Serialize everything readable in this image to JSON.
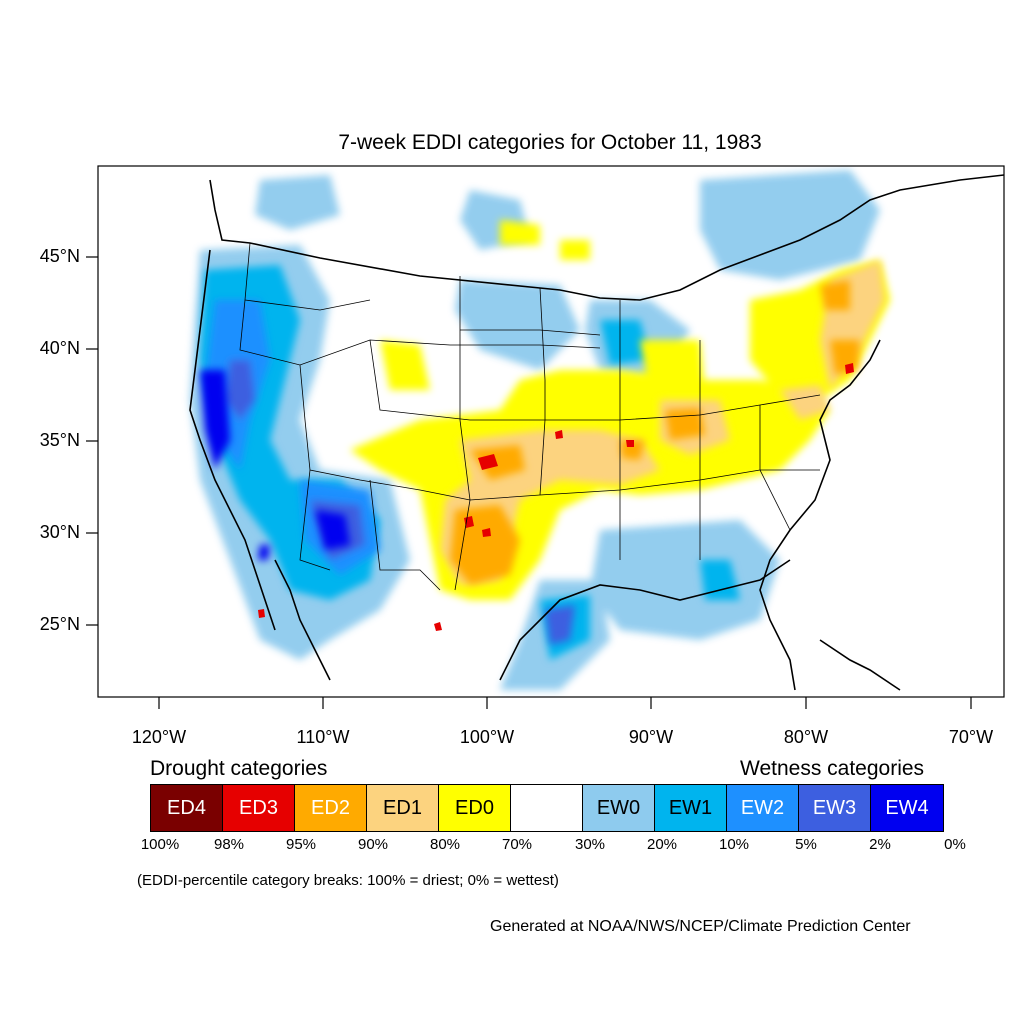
{
  "title": "7-week EDDI categories for October 11, 1983",
  "lat_labels": [
    "45°N",
    "40°N",
    "35°N",
    "30°N",
    "25°N"
  ],
  "lon_labels": [
    "120°W",
    "110°W",
    "100°W",
    "90°W",
    "80°W",
    "70°W"
  ],
  "drought_heading": "Drought categories",
  "wetness_heading": "Wetness categories",
  "legend": [
    {
      "label": "ED4",
      "color": "#7a0000",
      "text_color": "#ffffff"
    },
    {
      "label": "ED3",
      "color": "#e60000",
      "text_color": "#ffffff"
    },
    {
      "label": "ED2",
      "color": "#ffaa00",
      "text_color": "#ffffff"
    },
    {
      "label": "ED1",
      "color": "#fcd37f",
      "text_color": "#000000"
    },
    {
      "label": "ED0",
      "color": "#ffff00",
      "text_color": "#000000"
    },
    {
      "label": "",
      "color": "#ffffff",
      "text_color": "#000000"
    },
    {
      "label": "EW0",
      "color": "#8ecbee",
      "text_color": "#000000"
    },
    {
      "label": "EW1",
      "color": "#00b4ee",
      "text_color": "#000000"
    },
    {
      "label": "EW2",
      "color": "#1e90ff",
      "text_color": "#ffffff"
    },
    {
      "label": "EW3",
      "color": "#3d5fe0",
      "text_color": "#ffffff"
    },
    {
      "label": "EW4",
      "color": "#0000f0",
      "text_color": "#ffffff"
    }
  ],
  "percent_breaks": [
    "100%",
    "98%",
    "95%",
    "90%",
    "80%",
    "70%",
    "30%",
    "20%",
    "10%",
    "5%",
    "2%",
    "0%"
  ],
  "note": "(EDDI-percentile category breaks: 100% = driest; 0% = wettest)",
  "credit": "Generated at NOAA/NWS/NCEP/Climate Prediction Center"
}
